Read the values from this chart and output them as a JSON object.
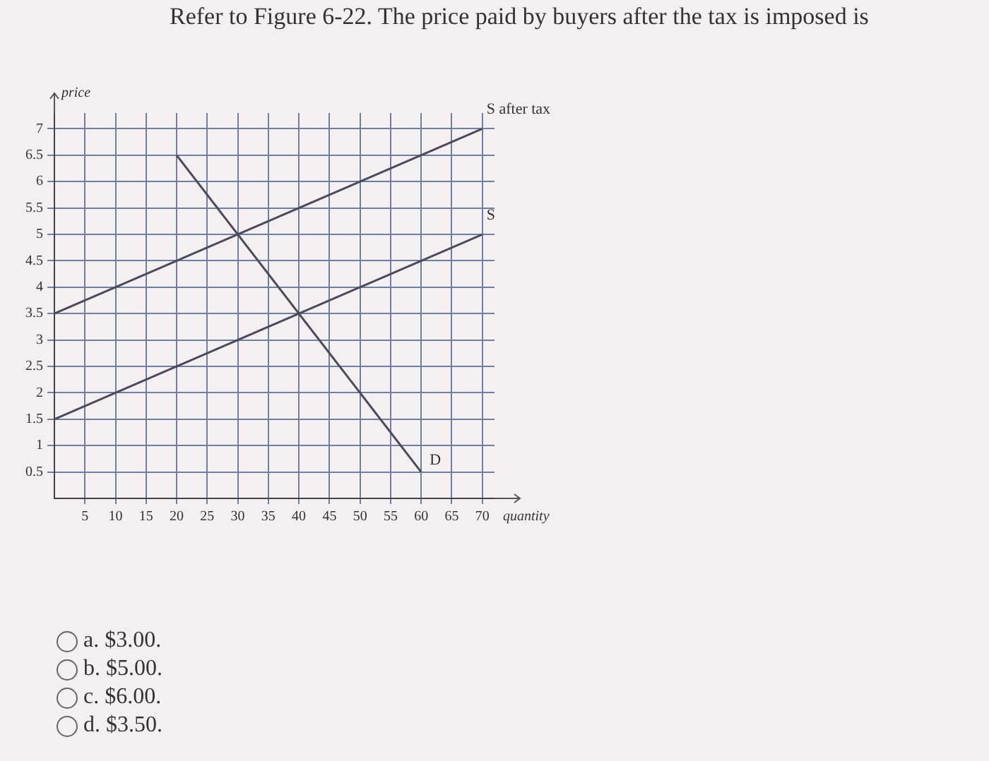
{
  "chart_data": {
    "type": "line",
    "title": "Refer to Figure 6-22. The price paid by buyers after the tax is imposed is",
    "xlabel": "quantity",
    "ylabel": "price",
    "xlim": [
      0,
      72
    ],
    "xticks": [
      5,
      10,
      15,
      20,
      25,
      30,
      35,
      40,
      45,
      50,
      55,
      60,
      65,
      70
    ],
    "ylim": [
      0,
      7.3
    ],
    "yticks": [
      0.5,
      1,
      1.5,
      2,
      2.5,
      3,
      3.5,
      4,
      4.5,
      5,
      5.5,
      6,
      6.5,
      7
    ],
    "grid": true,
    "marker": "none",
    "line_style": "solid",
    "series": [
      {
        "name": "S after tax",
        "color": "#4a4a5a",
        "x": [
          0,
          70
        ],
        "values": [
          3.5,
          7
        ]
      },
      {
        "name": "S",
        "color": "#4a4a5a",
        "x": [
          0,
          70
        ],
        "values": [
          1.5,
          5
        ]
      },
      {
        "name": "D",
        "color": "#4a4a5a",
        "x": [
          20,
          60
        ],
        "values": [
          6.5,
          0.5
        ]
      }
    ],
    "annotations": [
      "a. $3.00.",
      "b. $5.00.",
      "c. $6.00.",
      "d. $3.50."
    ]
  }
}
